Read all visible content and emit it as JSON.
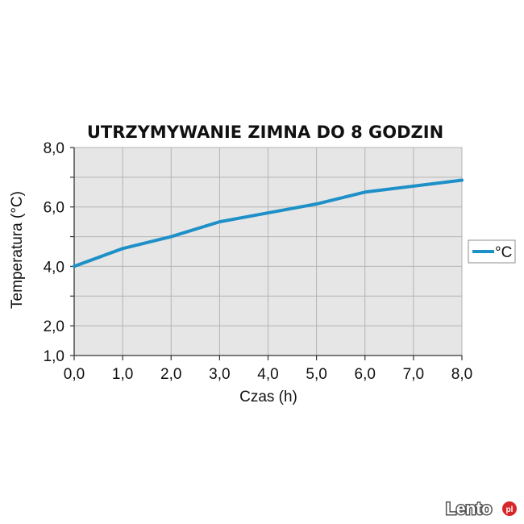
{
  "chart_data": {
    "type": "line",
    "title": "UTRZYMYWANIE ZIMNA DO 8 GODZIN",
    "xlabel": "Czas (h)",
    "ylabel": "Temperatura (°C)",
    "xlim": [
      0,
      8
    ],
    "ylim": [
      1,
      8
    ],
    "x_ticks": [
      "0,0",
      "1,0",
      "2,0",
      "3,0",
      "4,0",
      "5,0",
      "6,0",
      "7,0",
      "8,0"
    ],
    "y_ticks": [
      "1,0",
      "2,0",
      "4,0",
      "6,0",
      "8,0"
    ],
    "grid": true,
    "legend_position": "right",
    "series": [
      {
        "name": "°C",
        "color": "#1e90c8",
        "x": [
          0,
          1,
          2,
          3,
          4,
          5,
          6,
          7,
          8
        ],
        "y": [
          4.0,
          4.6,
          5.0,
          5.5,
          5.8,
          6.1,
          6.5,
          6.7,
          6.9
        ]
      }
    ]
  },
  "watermark": {
    "text": "Lento",
    "badge": "pl"
  }
}
